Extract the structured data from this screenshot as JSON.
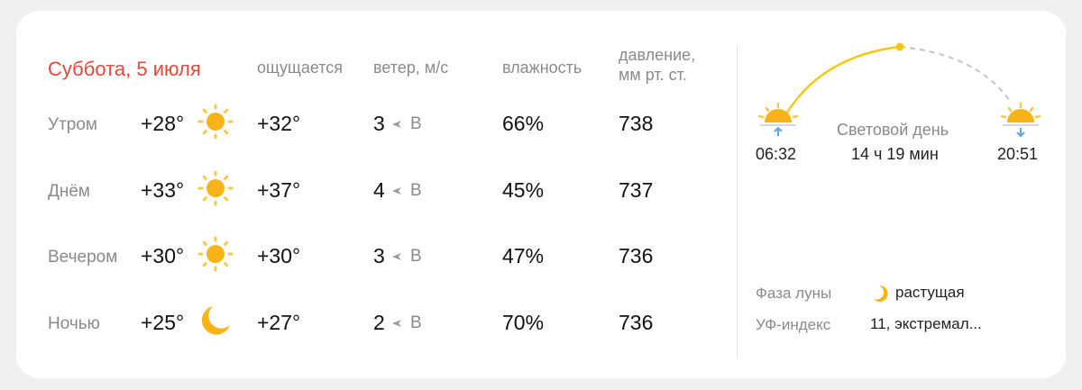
{
  "date_title": "Суббота, 5 июля",
  "headers": {
    "feels": "ощущается",
    "wind": "ветер, м/с",
    "humidity": "влажность",
    "pressure_line1": "давление,",
    "pressure_line2": "мм рт. ст."
  },
  "rows": [
    {
      "label": "Утром",
      "temp": "+28°",
      "icon": "sun-icon",
      "feels": "+32°",
      "wind_speed": "3",
      "wind_dir": "В",
      "humidity": "66%",
      "pressure": "738"
    },
    {
      "label": "Днём",
      "temp": "+33°",
      "icon": "sun-icon",
      "feels": "+37°",
      "wind_speed": "4",
      "wind_dir": "В",
      "humidity": "45%",
      "pressure": "737"
    },
    {
      "label": "Вечером",
      "temp": "+30°",
      "icon": "sun-icon",
      "feels": "+30°",
      "wind_speed": "3",
      "wind_dir": "В",
      "humidity": "47%",
      "pressure": "736"
    },
    {
      "label": "Ночью",
      "temp": "+25°",
      "icon": "moon-icon",
      "feels": "+27°",
      "wind_speed": "2",
      "wind_dir": "В",
      "humidity": "70%",
      "pressure": "736"
    }
  ],
  "sun": {
    "sunrise": "06:32",
    "sunset": "20:51",
    "daylight_label": "Световой день",
    "daylight_value": "14 ч 19 мин"
  },
  "moon": {
    "label": "Фаза луны",
    "value": "растущая"
  },
  "uv": {
    "label": "УФ-индекс",
    "value": "11, экстремал..."
  },
  "colors": {
    "accent": "#e0493b",
    "sun": "#f7b318",
    "arc": "#f2c818",
    "arrow": "#5aa6e6"
  }
}
